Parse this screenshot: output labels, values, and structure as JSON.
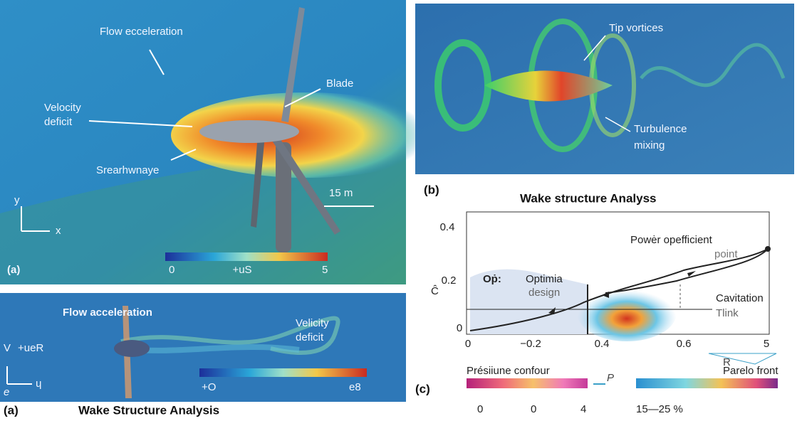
{
  "panel_a": {
    "label": "(a)",
    "annotations": {
      "flow": "Flow ecceleration",
      "blade": "Blade",
      "deficit": [
        "Velocity",
        "deficit"
      ],
      "shear": "Srearhwnaye"
    },
    "scale_bar": "15 m",
    "axes": {
      "y": "y",
      "x": "x"
    },
    "colorbar": [
      "0",
      "+uS",
      "5"
    ]
  },
  "panel_a2": {
    "annotations": {
      "flow": "Flow acceleration",
      "deficit": [
        "Velicity",
        "deficit"
      ],
      "v": "V",
      "v_label": "+ueR",
      "e": "e",
      "u": "ɥ"
    },
    "colorbar": [
      "+O",
      "e8"
    ],
    "caption": {
      "label": "(a)",
      "title": "Wake Structure Analysis"
    }
  },
  "panel_b": {
    "annotations": {
      "tip": "Tip vortices",
      "turbulence": [
        "Turbulence",
        "mixing"
      ]
    },
    "caption": {
      "label": "(b)",
      "title": "Wake structure Analyss"
    }
  },
  "panel_c": {
    "label": "(c)",
    "y_label": "Ĉ",
    "y_ticks": [
      "0.4",
      "0.2",
      "0"
    ],
    "x_ticks": [
      "0",
      "−0.2",
      "0.4",
      "0.6",
      "5"
    ],
    "annotations": {
      "power": "Powėr opefficient",
      "point": "point",
      "op": "Oṗ:",
      "optimia": [
        "Optimia",
        "design"
      ],
      "cavitation": [
        "Cavitation",
        "Tlink"
      ],
      "r": "R"
    },
    "legend": {
      "pressure": "Présiiune confour",
      "pressure_ticks": [
        "0",
        "0",
        "4"
      ],
      "p": "P",
      "pareto": "Parelo front",
      "pareto_range": "15—25 %"
    }
  }
}
